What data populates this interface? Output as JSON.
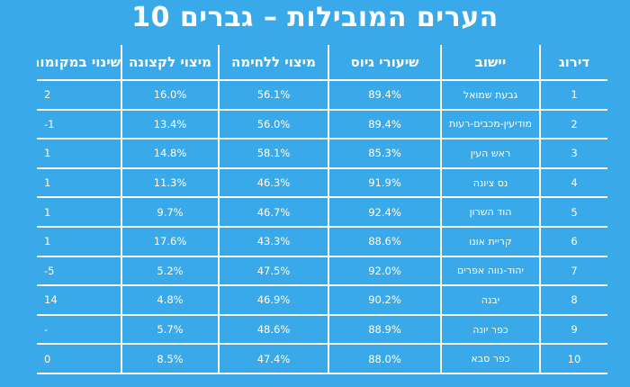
{
  "title": "10 הערים המובילות – גברים",
  "columns": {
    "rank": "דירוג",
    "town": "יישוב",
    "draft": "שיעורי גיוס",
    "combat": "מיצוי ללחימה",
    "officer": "מיצוי לקצונה",
    "change": "שינוי במקומות"
  },
  "rows": [
    {
      "rank": "1",
      "town": "גבעת שמואל",
      "draft": "89.4%",
      "combat": "56.1%",
      "officer": "16.0%",
      "change": "2"
    },
    {
      "rank": "2",
      "town": "מודיעין-מכבים-רעות",
      "draft": "89.4%",
      "combat": "56.0%",
      "officer": "13.4%",
      "change": "-1"
    },
    {
      "rank": "3",
      "town": "ראש העין",
      "draft": "85.3%",
      "combat": "58.1%",
      "officer": "14.8%",
      "change": "1"
    },
    {
      "rank": "4",
      "town": "נס ציונה",
      "draft": "91.9%",
      "combat": "46.3%",
      "officer": "11.3%",
      "change": "1"
    },
    {
      "rank": "5",
      "town": "הוד השרון",
      "draft": "92.4%",
      "combat": "46.7%",
      "officer": "9.7%",
      "change": "1"
    },
    {
      "rank": "6",
      "town": "קריית אונו",
      "draft": "88.6%",
      "combat": "43.3%",
      "officer": "17.6%",
      "change": "1"
    },
    {
      "rank": "7",
      "town": "יהוד-נווה אפרים",
      "draft": "92.0%",
      "combat": "47.5%",
      "officer": "5.2%",
      "change": "-5"
    },
    {
      "rank": "8",
      "town": "יבנה",
      "draft": "90.2%",
      "combat": "46.9%",
      "officer": "4.8%",
      "change": "14"
    },
    {
      "rank": "9",
      "town": "כפר יונה",
      "draft": "88.9%",
      "combat": "48.6%",
      "officer": "5.7%",
      "change": "-"
    },
    {
      "rank": "10",
      "town": "כפר סבא",
      "draft": "88.0%",
      "combat": "47.4%",
      "officer": "8.5%",
      "change": "0"
    }
  ],
  "colors": {
    "background": "#3aa9e9",
    "text": "#ffffff",
    "grid": "#ffffff"
  }
}
